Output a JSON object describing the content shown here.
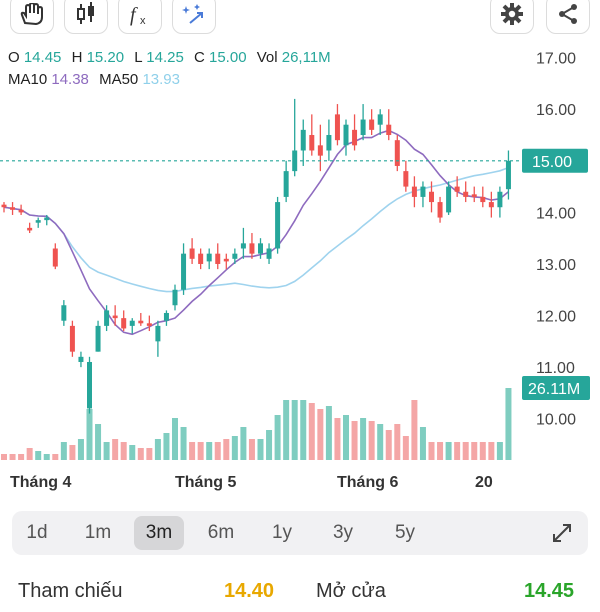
{
  "toolbar": {
    "left_icons": [
      "hand-draw-icon",
      "candlestick-icon",
      "function-icon",
      "magic-wand-icon"
    ],
    "right_icons": [
      "gear-icon",
      "share-icon"
    ]
  },
  "ohlc": {
    "o_label": "O",
    "o": "14.45",
    "h_label": "H",
    "h": "15.20",
    "l_label": "L",
    "l": "14.25",
    "c_label": "C",
    "c": "15.00",
    "vol_label": "Vol",
    "vol": "26,11M"
  },
  "ma": {
    "ma10_label": "MA10",
    "ma10": "14.38",
    "ma50_label": "MA50",
    "ma50": "13.93"
  },
  "chart_data": {
    "type": "candlestick",
    "ylim": [
      9.2,
      17.4
    ],
    "y_ticks": [
      "17.00",
      "16.00",
      "15.00",
      "14.00",
      "13.00",
      "12.00",
      "11.00",
      "10.00"
    ],
    "x_labels": [
      "Tháng 4",
      "Tháng 5",
      "Tháng 6",
      "20"
    ],
    "current_price": "15.00",
    "current_volume": "26.11M",
    "colors": {
      "up": "#26a69a",
      "down": "#ef5350",
      "ma10": "#8e6bbf",
      "ma50": "#9fd3ee",
      "vol_up": "#7fcdc0",
      "vol_down": "#f4a6a6"
    },
    "candles": [
      [
        14.15,
        14.2,
        14.0,
        14.1
      ],
      [
        14.1,
        14.2,
        13.95,
        14.05
      ],
      [
        14.05,
        14.15,
        13.95,
        14.0
      ],
      [
        13.7,
        13.8,
        13.6,
        13.65
      ],
      [
        13.8,
        13.9,
        13.7,
        13.85
      ],
      [
        13.85,
        13.95,
        13.75,
        13.9
      ],
      [
        13.3,
        13.4,
        12.9,
        12.95
      ],
      [
        11.9,
        12.3,
        11.8,
        12.2
      ],
      [
        11.8,
        11.9,
        11.2,
        11.3
      ],
      [
        11.1,
        11.3,
        11.0,
        11.2
      ],
      [
        10.2,
        11.2,
        10.1,
        11.1
      ],
      [
        11.3,
        11.9,
        11.3,
        11.8
      ],
      [
        11.8,
        12.2,
        11.7,
        12.1
      ],
      [
        12.0,
        12.2,
        11.8,
        11.95
      ],
      [
        11.95,
        12.1,
        11.7,
        11.75
      ],
      [
        11.8,
        11.95,
        11.65,
        11.9
      ],
      [
        11.9,
        12.05,
        11.8,
        11.85
      ],
      [
        11.85,
        12.0,
        11.7,
        11.8
      ],
      [
        11.5,
        11.9,
        11.2,
        11.8
      ],
      [
        11.9,
        12.1,
        11.8,
        12.05
      ],
      [
        12.2,
        12.6,
        12.1,
        12.5
      ],
      [
        12.5,
        13.4,
        12.4,
        13.2
      ],
      [
        13.3,
        13.5,
        13.0,
        13.1
      ],
      [
        13.2,
        13.3,
        12.9,
        13.0
      ],
      [
        13.05,
        13.3,
        12.9,
        13.2
      ],
      [
        13.2,
        13.4,
        12.9,
        13.0
      ],
      [
        13.1,
        13.2,
        12.9,
        13.05
      ],
      [
        13.1,
        13.3,
        13.0,
        13.2
      ],
      [
        13.3,
        13.7,
        13.1,
        13.4
      ],
      [
        13.4,
        13.6,
        13.1,
        13.2
      ],
      [
        13.2,
        13.5,
        13.1,
        13.4
      ],
      [
        13.1,
        13.4,
        13.0,
        13.3
      ],
      [
        13.3,
        14.3,
        13.2,
        14.2
      ],
      [
        14.3,
        15.0,
        14.2,
        14.8
      ],
      [
        14.8,
        16.2,
        14.7,
        15.2
      ],
      [
        15.2,
        15.8,
        14.9,
        15.6
      ],
      [
        15.5,
        15.9,
        15.1,
        15.2
      ],
      [
        15.3,
        15.7,
        14.8,
        15.1
      ],
      [
        15.2,
        15.8,
        15.0,
        15.5
      ],
      [
        15.9,
        16.1,
        15.3,
        15.4
      ],
      [
        15.3,
        15.8,
        15.1,
        15.7
      ],
      [
        15.6,
        15.9,
        15.2,
        15.3
      ],
      [
        15.5,
        16.1,
        15.4,
        15.8
      ],
      [
        15.8,
        16.0,
        15.5,
        15.6
      ],
      [
        15.7,
        16.0,
        15.5,
        15.9
      ],
      [
        15.7,
        16.0,
        15.4,
        15.5
      ],
      [
        15.4,
        15.5,
        14.8,
        14.9
      ],
      [
        14.8,
        15.0,
        14.4,
        14.5
      ],
      [
        14.5,
        14.7,
        14.1,
        14.3
      ],
      [
        14.3,
        14.6,
        14.1,
        14.5
      ],
      [
        14.4,
        14.6,
        14.0,
        14.2
      ],
      [
        14.2,
        14.3,
        13.8,
        13.9
      ],
      [
        14.0,
        14.6,
        13.95,
        14.5
      ],
      [
        14.5,
        14.7,
        14.3,
        14.4
      ],
      [
        14.4,
        14.6,
        14.2,
        14.3
      ],
      [
        14.35,
        14.5,
        14.2,
        14.3
      ],
      [
        14.3,
        14.5,
        14.1,
        14.2
      ],
      [
        14.2,
        14.4,
        13.9,
        14.1
      ],
      [
        14.1,
        14.5,
        13.9,
        14.4
      ],
      [
        14.45,
        15.2,
        14.25,
        15.0
      ]
    ],
    "volume": [
      0.1,
      0.1,
      0.1,
      0.2,
      0.15,
      0.1,
      0.1,
      0.3,
      0.25,
      0.35,
      0.85,
      0.6,
      0.3,
      0.35,
      0.3,
      0.25,
      0.2,
      0.2,
      0.35,
      0.45,
      0.7,
      0.55,
      0.3,
      0.3,
      0.3,
      0.3,
      0.35,
      0.4,
      0.55,
      0.35,
      0.35,
      0.5,
      0.75,
      1.0,
      1.0,
      1.0,
      0.95,
      0.85,
      0.9,
      0.7,
      0.75,
      0.65,
      0.7,
      0.65,
      0.6,
      0.5,
      0.6,
      0.4,
      1.0,
      0.55,
      0.3,
      0.3,
      0.3,
      0.3,
      0.3,
      0.3,
      0.3,
      0.3,
      0.3,
      1.2
    ]
  },
  "periods": [
    "1d",
    "1m",
    "3m",
    "6m",
    "1y",
    "3y",
    "5y"
  ],
  "active_period": "3m",
  "footer": {
    "ref_label": "Tham chiếu",
    "ref_value": "14.40",
    "open_label": "Mở cửa",
    "open_value": "14.45"
  }
}
